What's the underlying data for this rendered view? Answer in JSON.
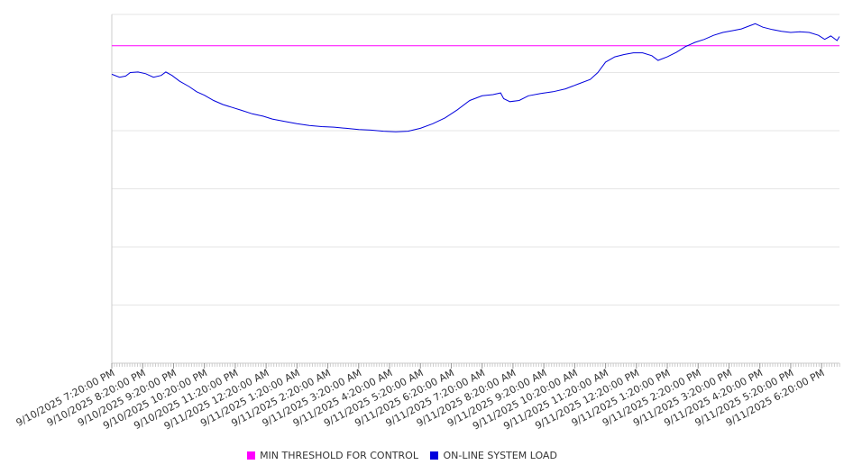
{
  "chart_data": {
    "type": "line",
    "title": "",
    "xlabel": "",
    "ylabel": "",
    "grid": true,
    "legend_position": "bottom-center",
    "x_tick_labels": [
      "9/10/2025 7:20:00 PM",
      "9/10/2025 8:20:00 PM",
      "9/10/2025 9:20:00 PM",
      "9/10/2025 10:20:00 PM",
      "9/10/2025 11:20:00 PM",
      "9/11/2025 12:20:00 AM",
      "9/11/2025 1:20:00 AM",
      "9/11/2025 2:20:00 AM",
      "9/11/2025 3:20:00 AM",
      "9/11/2025 4:20:00 AM",
      "9/11/2025 5:20:00 AM",
      "9/11/2025 6:20:00 AM",
      "9/11/2025 7:20:00 AM",
      "9/11/2025 8:20:00 AM",
      "9/11/2025 9:20:00 AM",
      "9/11/2025 10:20:00 AM",
      "9/11/2025 11:20:00 AM",
      "9/11/2025 12:20:00 PM",
      "9/11/2025 1:20:00 PM",
      "9/11/2025 2:20:00 PM",
      "9/11/2025 3:20:00 PM",
      "9/11/2025 4:20:00 PM",
      "9/11/2025 5:20:00 PM",
      "9/11/2025 6:20:00 PM"
    ],
    "x_range": [
      "9/10/2025 7:20:00 PM",
      "9/11/2025 6:55:00 PM"
    ],
    "y_gridlines": 6,
    "ylim": [
      0,
      6
    ],
    "series": [
      {
        "name": "MIN THRESHOLD FOR CONTROL",
        "color": "#ff00ff",
        "values": [
          [
            0,
            5.46
          ],
          [
            23.58,
            5.46
          ]
        ]
      },
      {
        "name": "ON-LINE SYSTEM LOAD",
        "color": "#0000dd",
        "values": [
          [
            0,
            4.97
          ],
          [
            0.25,
            4.92
          ],
          [
            0.45,
            4.94
          ],
          [
            0.6,
            5.0
          ],
          [
            0.85,
            5.01
          ],
          [
            1.1,
            4.98
          ],
          [
            1.35,
            4.92
          ],
          [
            1.6,
            4.95
          ],
          [
            1.75,
            5.01
          ],
          [
            1.95,
            4.95
          ],
          [
            2.2,
            4.85
          ],
          [
            2.5,
            4.76
          ],
          [
            2.75,
            4.67
          ],
          [
            3.0,
            4.61
          ],
          [
            3.3,
            4.52
          ],
          [
            3.6,
            4.45
          ],
          [
            3.9,
            4.4
          ],
          [
            4.2,
            4.35
          ],
          [
            4.55,
            4.29
          ],
          [
            4.9,
            4.25
          ],
          [
            5.2,
            4.2
          ],
          [
            5.6,
            4.16
          ],
          [
            6.0,
            4.12
          ],
          [
            6.4,
            4.09
          ],
          [
            6.8,
            4.07
          ],
          [
            7.2,
            4.06
          ],
          [
            7.6,
            4.04
          ],
          [
            8.0,
            4.02
          ],
          [
            8.4,
            4.01
          ],
          [
            8.8,
            3.99
          ],
          [
            9.2,
            3.98
          ],
          [
            9.6,
            3.99
          ],
          [
            10.0,
            4.04
          ],
          [
            10.4,
            4.12
          ],
          [
            10.8,
            4.22
          ],
          [
            11.2,
            4.36
          ],
          [
            11.6,
            4.52
          ],
          [
            12.0,
            4.6
          ],
          [
            12.35,
            4.62
          ],
          [
            12.6,
            4.65
          ],
          [
            12.7,
            4.55
          ],
          [
            12.9,
            4.5
          ],
          [
            13.2,
            4.52
          ],
          [
            13.5,
            4.6
          ],
          [
            13.9,
            4.64
          ],
          [
            14.3,
            4.67
          ],
          [
            14.7,
            4.72
          ],
          [
            15.1,
            4.8
          ],
          [
            15.5,
            4.88
          ],
          [
            15.75,
            5.0
          ],
          [
            16.0,
            5.18
          ],
          [
            16.3,
            5.27
          ],
          [
            16.6,
            5.31
          ],
          [
            16.9,
            5.34
          ],
          [
            17.2,
            5.34
          ],
          [
            17.5,
            5.29
          ],
          [
            17.7,
            5.21
          ],
          [
            18.0,
            5.27
          ],
          [
            18.3,
            5.35
          ],
          [
            18.6,
            5.45
          ],
          [
            18.9,
            5.52
          ],
          [
            19.2,
            5.57
          ],
          [
            19.5,
            5.64
          ],
          [
            19.8,
            5.69
          ],
          [
            20.1,
            5.72
          ],
          [
            20.4,
            5.75
          ],
          [
            20.65,
            5.8
          ],
          [
            20.85,
            5.84
          ],
          [
            21.1,
            5.78
          ],
          [
            21.4,
            5.74
          ],
          [
            21.7,
            5.71
          ],
          [
            22.0,
            5.69
          ],
          [
            22.3,
            5.7
          ],
          [
            22.6,
            5.69
          ],
          [
            22.9,
            5.64
          ],
          [
            23.1,
            5.57
          ],
          [
            23.3,
            5.63
          ],
          [
            23.5,
            5.55
          ],
          [
            23.58,
            5.62
          ]
        ]
      }
    ]
  }
}
